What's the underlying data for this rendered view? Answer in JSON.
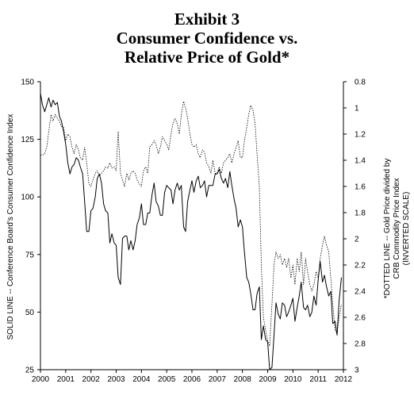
{
  "title": {
    "line1": "Exhibit 3",
    "line2": "Consumer Confidence vs.",
    "line3": "Relative Price of Gold*"
  },
  "chart_data": {
    "type": "line",
    "title": "Exhibit 3 Consumer Confidence vs. Relative Price of Gold*",
    "ylabel_left": "SOLID LINE -- Conference Board's Consumer Confidence Index",
    "ylabel_right": [
      "*DOTTED LINE -- Gold Price divided by",
      "CRB Commodity Price Index",
      "(INVERTED SCALE)"
    ],
    "x_range": [
      2000,
      2012
    ],
    "x_ticks": [
      "2000",
      "2001",
      "2002",
      "2003",
      "2004",
      "2005",
      "2006",
      "2007",
      "2008",
      "2009",
      "2010",
      "2011",
      "2012"
    ],
    "y_left_range": [
      25,
      150
    ],
    "y_left_ticks": [
      "25",
      "50",
      "75",
      "100",
      "125",
      "150"
    ],
    "y_right_range": [
      0.8,
      3.0
    ],
    "y_right_inverted": true,
    "y_right_ticks": [
      "0.8",
      "1",
      "1.2",
      "1.4",
      "1.6",
      "1.8",
      "2",
      "2.2",
      "2.4",
      "2.6",
      "2.8",
      "3"
    ],
    "grid": false,
    "series": [
      {
        "name": "SOLID LINE -- Conference Board's Consumer Confidence Index",
        "axis": "left",
        "style": "solid",
        "points": [
          [
            2000.0,
            145
          ],
          [
            2000.08,
            140
          ],
          [
            2000.17,
            137
          ],
          [
            2000.25,
            140
          ],
          [
            2000.33,
            143
          ],
          [
            2000.42,
            139
          ],
          [
            2000.5,
            142
          ],
          [
            2000.58,
            140
          ],
          [
            2000.67,
            141
          ],
          [
            2000.75,
            135
          ],
          [
            2000.83,
            133
          ],
          [
            2000.92,
            128
          ],
          [
            2001.0,
            123
          ],
          [
            2001.08,
            115
          ],
          [
            2001.17,
            110
          ],
          [
            2001.25,
            113
          ],
          [
            2001.33,
            114
          ],
          [
            2001.42,
            117
          ],
          [
            2001.5,
            116
          ],
          [
            2001.58,
            113
          ],
          [
            2001.67,
            110
          ],
          [
            2001.75,
            98
          ],
          [
            2001.83,
            85
          ],
          [
            2001.92,
            85
          ],
          [
            2002.0,
            94
          ],
          [
            2002.08,
            95
          ],
          [
            2002.17,
            100
          ],
          [
            2002.25,
            108
          ],
          [
            2002.33,
            110
          ],
          [
            2002.42,
            106
          ],
          [
            2002.5,
            97
          ],
          [
            2002.58,
            94
          ],
          [
            2002.67,
            93
          ],
          [
            2002.75,
            80
          ],
          [
            2002.83,
            84
          ],
          [
            2002.92,
            80
          ],
          [
            2003.0,
            79
          ],
          [
            2003.08,
            65
          ],
          [
            2003.17,
            62
          ],
          [
            2003.25,
            82
          ],
          [
            2003.33,
            83
          ],
          [
            2003.42,
            83
          ],
          [
            2003.5,
            77
          ],
          [
            2003.58,
            81
          ],
          [
            2003.67,
            77
          ],
          [
            2003.75,
            81
          ],
          [
            2003.83,
            88
          ],
          [
            2003.92,
            91
          ],
          [
            2004.0,
            97
          ],
          [
            2004.08,
            88
          ],
          [
            2004.17,
            88
          ],
          [
            2004.25,
            93
          ],
          [
            2004.33,
            93
          ],
          [
            2004.42,
            101
          ],
          [
            2004.5,
            106
          ],
          [
            2004.58,
            98
          ],
          [
            2004.67,
            96
          ],
          [
            2004.75,
            92
          ],
          [
            2004.83,
            92
          ],
          [
            2004.92,
            102
          ],
          [
            2005.0,
            105
          ],
          [
            2005.08,
            104
          ],
          [
            2005.17,
            103
          ],
          [
            2005.25,
            97
          ],
          [
            2005.33,
            103
          ],
          [
            2005.42,
            106
          ],
          [
            2005.5,
            103
          ],
          [
            2005.58,
            105
          ],
          [
            2005.67,
            87
          ],
          [
            2005.75,
            85
          ],
          [
            2005.83,
            98
          ],
          [
            2005.92,
            103
          ],
          [
            2006.0,
            107
          ],
          [
            2006.08,
            102
          ],
          [
            2006.17,
            107
          ],
          [
            2006.25,
            109
          ],
          [
            2006.33,
            104
          ],
          [
            2006.42,
            105
          ],
          [
            2006.5,
            107
          ],
          [
            2006.58,
            100
          ],
          [
            2006.67,
            105
          ],
          [
            2006.75,
            105
          ],
          [
            2006.83,
            105
          ],
          [
            2006.92,
            110
          ],
          [
            2007.0,
            110
          ],
          [
            2007.08,
            112
          ],
          [
            2007.17,
            108
          ],
          [
            2007.25,
            106
          ],
          [
            2007.33,
            108
          ],
          [
            2007.42,
            104
          ],
          [
            2007.5,
            111
          ],
          [
            2007.58,
            105
          ],
          [
            2007.67,
            99
          ],
          [
            2007.75,
            95
          ],
          [
            2007.83,
            87
          ],
          [
            2007.92,
            90
          ],
          [
            2008.0,
            87
          ],
          [
            2008.08,
            76
          ],
          [
            2008.17,
            65
          ],
          [
            2008.25,
            63
          ],
          [
            2008.33,
            58
          ],
          [
            2008.42,
            51
          ],
          [
            2008.5,
            51
          ],
          [
            2008.58,
            58
          ],
          [
            2008.67,
            61
          ],
          [
            2008.75,
            38
          ],
          [
            2008.83,
            44
          ],
          [
            2008.92,
            38
          ],
          [
            2009.0,
            37
          ],
          [
            2009.08,
            25
          ],
          [
            2009.17,
            26
          ],
          [
            2009.25,
            40
          ],
          [
            2009.33,
            54
          ],
          [
            2009.42,
            49
          ],
          [
            2009.5,
            47
          ],
          [
            2009.58,
            54
          ],
          [
            2009.67,
            53
          ],
          [
            2009.75,
            48
          ],
          [
            2009.83,
            50
          ],
          [
            2009.92,
            53
          ],
          [
            2010.0,
            56
          ],
          [
            2010.08,
            46
          ],
          [
            2010.17,
            52
          ],
          [
            2010.25,
            57
          ],
          [
            2010.33,
            63
          ],
          [
            2010.42,
            52
          ],
          [
            2010.5,
            51
          ],
          [
            2010.58,
            53
          ],
          [
            2010.67,
            48
          ],
          [
            2010.75,
            50
          ],
          [
            2010.83,
            57
          ],
          [
            2010.92,
            53
          ],
          [
            2011.0,
            64
          ],
          [
            2011.08,
            72
          ],
          [
            2011.17,
            63
          ],
          [
            2011.25,
            66
          ],
          [
            2011.33,
            61
          ],
          [
            2011.42,
            57
          ],
          [
            2011.5,
            59
          ],
          [
            2011.58,
            45
          ],
          [
            2011.67,
            46
          ],
          [
            2011.75,
            40
          ],
          [
            2011.83,
            55
          ],
          [
            2011.92,
            65
          ]
        ]
      },
      {
        "name": "*DOTTED LINE -- Gold Price divided by CRB Commodity Price Index",
        "axis": "right",
        "style": "dotted",
        "points": [
          [
            2000.0,
            1.36
          ],
          [
            2000.08,
            1.36
          ],
          [
            2000.17,
            1.35
          ],
          [
            2000.25,
            1.3
          ],
          [
            2000.33,
            1.18
          ],
          [
            2000.42,
            1.05
          ],
          [
            2000.5,
            1.1
          ],
          [
            2000.58,
            1.05
          ],
          [
            2000.67,
            1.08
          ],
          [
            2000.75,
            1.1
          ],
          [
            2000.83,
            1.14
          ],
          [
            2000.92,
            1.15
          ],
          [
            2001.0,
            1.25
          ],
          [
            2001.08,
            1.2
          ],
          [
            2001.17,
            1.22
          ],
          [
            2001.25,
            1.3
          ],
          [
            2001.33,
            1.35
          ],
          [
            2001.42,
            1.28
          ],
          [
            2001.5,
            1.32
          ],
          [
            2001.58,
            1.38
          ],
          [
            2001.67,
            1.4
          ],
          [
            2001.75,
            1.3
          ],
          [
            2001.83,
            1.42
          ],
          [
            2001.92,
            1.58
          ],
          [
            2002.0,
            1.6
          ],
          [
            2002.08,
            1.55
          ],
          [
            2002.17,
            1.5
          ],
          [
            2002.25,
            1.48
          ],
          [
            2002.33,
            1.52
          ],
          [
            2002.42,
            1.5
          ],
          [
            2002.5,
            1.48
          ],
          [
            2002.58,
            1.45
          ],
          [
            2002.67,
            1.46
          ],
          [
            2002.75,
            1.42
          ],
          [
            2002.83,
            1.46
          ],
          [
            2002.92,
            1.45
          ],
          [
            2003.0,
            1.48
          ],
          [
            2003.08,
            1.18
          ],
          [
            2003.17,
            1.5
          ],
          [
            2003.25,
            1.55
          ],
          [
            2003.33,
            1.6
          ],
          [
            2003.42,
            1.5
          ],
          [
            2003.5,
            1.55
          ],
          [
            2003.58,
            1.5
          ],
          [
            2003.67,
            1.48
          ],
          [
            2003.75,
            1.5
          ],
          [
            2003.83,
            1.55
          ],
          [
            2003.92,
            1.58
          ],
          [
            2004.0,
            1.6
          ],
          [
            2004.08,
            1.48
          ],
          [
            2004.17,
            1.45
          ],
          [
            2004.25,
            1.5
          ],
          [
            2004.33,
            1.3
          ],
          [
            2004.42,
            1.28
          ],
          [
            2004.5,
            1.25
          ],
          [
            2004.58,
            1.28
          ],
          [
            2004.67,
            1.35
          ],
          [
            2004.75,
            1.3
          ],
          [
            2004.83,
            1.22
          ],
          [
            2004.92,
            1.25
          ],
          [
            2005.0,
            1.28
          ],
          [
            2005.08,
            1.32
          ],
          [
            2005.17,
            1.2
          ],
          [
            2005.25,
            1.12
          ],
          [
            2005.33,
            1.08
          ],
          [
            2005.42,
            1.12
          ],
          [
            2005.5,
            1.2
          ],
          [
            2005.58,
            1.05
          ],
          [
            2005.67,
            0.95
          ],
          [
            2005.75,
            1.0
          ],
          [
            2005.83,
            1.08
          ],
          [
            2005.92,
            1.2
          ],
          [
            2006.0,
            1.28
          ],
          [
            2006.08,
            1.3
          ],
          [
            2006.17,
            1.28
          ],
          [
            2006.25,
            1.35
          ],
          [
            2006.33,
            1.38
          ],
          [
            2006.42,
            1.32
          ],
          [
            2006.5,
            1.34
          ],
          [
            2006.58,
            1.42
          ],
          [
            2006.67,
            1.45
          ],
          [
            2006.75,
            1.5
          ],
          [
            2006.83,
            1.4
          ],
          [
            2006.92,
            1.5
          ],
          [
            2007.0,
            1.5
          ],
          [
            2007.08,
            1.45
          ],
          [
            2007.17,
            1.5
          ],
          [
            2007.25,
            1.42
          ],
          [
            2007.33,
            1.4
          ],
          [
            2007.42,
            1.38
          ],
          [
            2007.5,
            1.35
          ],
          [
            2007.58,
            1.42
          ],
          [
            2007.67,
            1.35
          ],
          [
            2007.75,
            1.3
          ],
          [
            2007.83,
            1.25
          ],
          [
            2007.92,
            1.38
          ],
          [
            2008.0,
            1.38
          ],
          [
            2008.08,
            1.25
          ],
          [
            2008.17,
            1.15
          ],
          [
            2008.25,
            1.05
          ],
          [
            2008.33,
            0.98
          ],
          [
            2008.42,
            1.02
          ],
          [
            2008.5,
            1.12
          ],
          [
            2008.58,
            1.35
          ],
          [
            2008.67,
            1.6
          ],
          [
            2008.75,
            2.2
          ],
          [
            2008.83,
            2.6
          ],
          [
            2008.92,
            2.7
          ],
          [
            2009.0,
            2.78
          ],
          [
            2009.08,
            2.82
          ],
          [
            2009.17,
            2.5
          ],
          [
            2009.25,
            2.2
          ],
          [
            2009.33,
            2.1
          ],
          [
            2009.42,
            2.15
          ],
          [
            2009.5,
            2.12
          ],
          [
            2009.58,
            2.2
          ],
          [
            2009.67,
            2.15
          ],
          [
            2009.75,
            2.22
          ],
          [
            2009.83,
            2.15
          ],
          [
            2009.92,
            2.3
          ],
          [
            2010.0,
            2.2
          ],
          [
            2010.08,
            2.35
          ],
          [
            2010.17,
            2.15
          ],
          [
            2010.25,
            2.25
          ],
          [
            2010.33,
            2.1
          ],
          [
            2010.42,
            2.35
          ],
          [
            2010.5,
            2.15
          ],
          [
            2010.58,
            2.25
          ],
          [
            2010.67,
            2.35
          ],
          [
            2010.75,
            2.4
          ],
          [
            2010.83,
            2.35
          ],
          [
            2010.92,
            2.25
          ],
          [
            2011.0,
            2.3
          ],
          [
            2011.08,
            2.15
          ],
          [
            2011.17,
            2.05
          ],
          [
            2011.25,
            1.98
          ],
          [
            2011.33,
            2.05
          ],
          [
            2011.42,
            2.1
          ],
          [
            2011.5,
            2.3
          ],
          [
            2011.58,
            2.5
          ],
          [
            2011.67,
            2.7
          ],
          [
            2011.75,
            2.72
          ],
          [
            2011.83,
            2.6
          ],
          [
            2011.92,
            2.5
          ]
        ]
      }
    ]
  }
}
